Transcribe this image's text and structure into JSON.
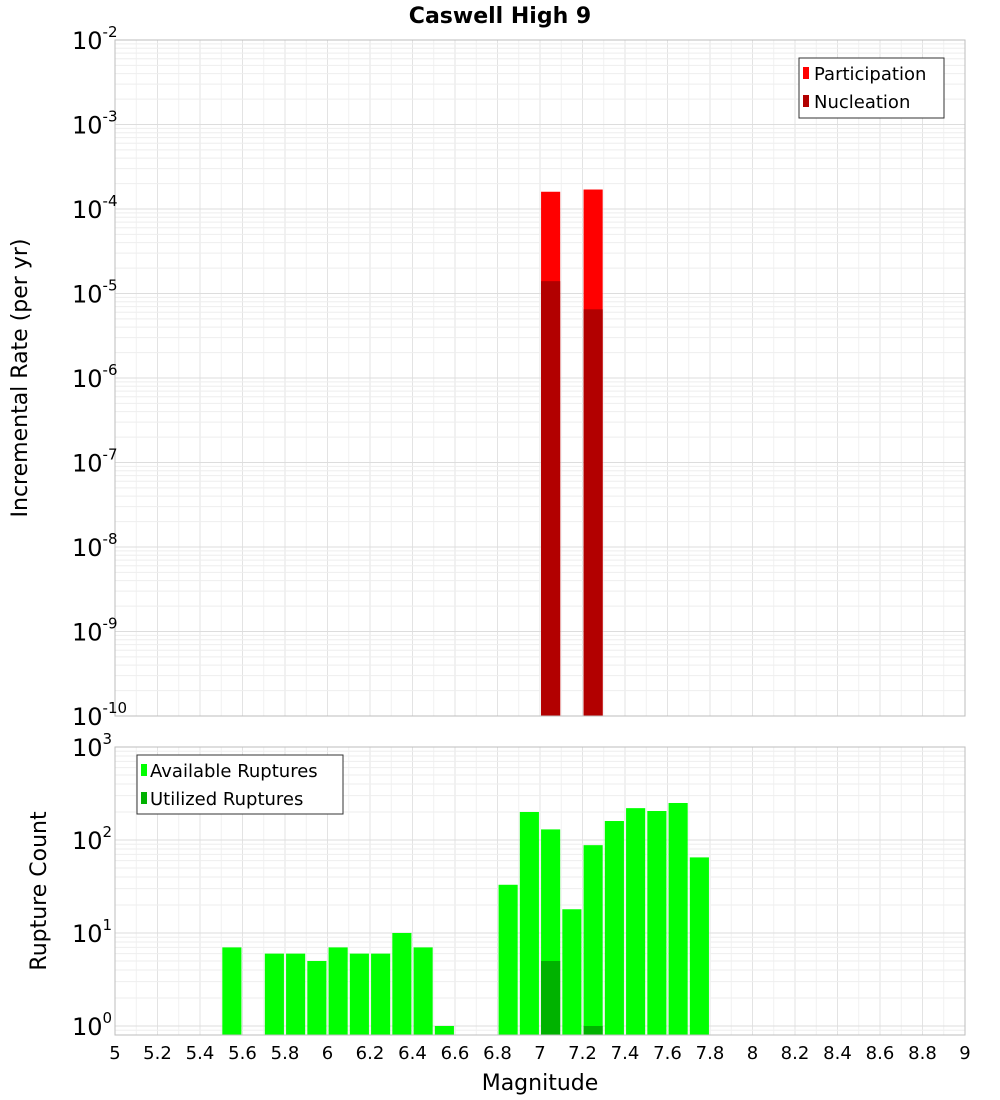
{
  "chart_data": [
    {
      "type": "bar",
      "title": "Caswell High 9",
      "xlabel": "",
      "ylabel": "Incremental Rate (per yr)",
      "yscale": "log",
      "ylim": [
        1e-10,
        0.01
      ],
      "xlim": [
        5,
        9
      ],
      "grid": true,
      "bar_width": 0.09,
      "y_ticks": [
        {
          "base": "10",
          "exp": "-10",
          "value": 1e-10
        },
        {
          "base": "10",
          "exp": "-9",
          "value": 1e-09
        },
        {
          "base": "10",
          "exp": "-8",
          "value": 1e-08
        },
        {
          "base": "10",
          "exp": "-7",
          "value": 1e-07
        },
        {
          "base": "10",
          "exp": "-6",
          "value": 1e-06
        },
        {
          "base": "10",
          "exp": "-5",
          "value": 1e-05
        },
        {
          "base": "10",
          "exp": "-4",
          "value": 0.0001
        },
        {
          "base": "10",
          "exp": "-3",
          "value": 0.001
        },
        {
          "base": "10",
          "exp": "-2",
          "value": 0.01
        }
      ],
      "legend": {
        "placement": "top-right",
        "entries": [
          {
            "label": "Participation",
            "color": "#ff0000"
          },
          {
            "label": "Nucleation",
            "color": "#b20000"
          }
        ]
      },
      "series": [
        {
          "name": "Participation",
          "color": "#ff0000",
          "x": [
            7.05,
            7.25
          ],
          "values": [
            0.00016,
            0.00017
          ]
        },
        {
          "name": "Nucleation",
          "color": "#b20000",
          "x": [
            7.05,
            7.25
          ],
          "values": [
            1.4e-05,
            6.5e-06
          ]
        }
      ]
    },
    {
      "type": "bar",
      "title": "",
      "xlabel": "Magnitude",
      "ylabel": "Rupture Count",
      "yscale": "log",
      "ylim": [
        0.8,
        1000
      ],
      "xlim": [
        5,
        9
      ],
      "grid": true,
      "bar_width": 0.09,
      "x_ticks": [
        "5",
        "5.2",
        "5.4",
        "5.6",
        "5.8",
        "6",
        "6.2",
        "6.4",
        "6.6",
        "6.8",
        "7",
        "7.2",
        "7.4",
        "7.6",
        "7.8",
        "8",
        "8.2",
        "8.4",
        "8.6",
        "8.8",
        "9"
      ],
      "y_ticks": [
        {
          "base": "10",
          "exp": "0",
          "value": 1
        },
        {
          "base": "10",
          "exp": "1",
          "value": 10
        },
        {
          "base": "10",
          "exp": "2",
          "value": 100
        },
        {
          "base": "10",
          "exp": "3",
          "value": 1000
        }
      ],
      "legend": {
        "placement": "top-left",
        "entries": [
          {
            "label": "Available Ruptures",
            "color": "#00ff00"
          },
          {
            "label": "Utilized Ruptures",
            "color": "#00b200"
          }
        ]
      },
      "series": [
        {
          "name": "Available Ruptures",
          "color": "#00ff00",
          "x": [
            5.55,
            5.75,
            5.85,
            5.95,
            6.05,
            6.15,
            6.25,
            6.35,
            6.45,
            6.55,
            6.85,
            6.95,
            7.05,
            7.15,
            7.25,
            7.35,
            7.45,
            7.55,
            7.65,
            7.75
          ],
          "values": [
            7,
            6,
            6,
            5,
            7,
            6,
            6,
            10,
            7,
            1,
            33,
            200,
            130,
            18,
            88,
            160,
            220,
            205,
            250,
            65
          ]
        },
        {
          "name": "Utilized Ruptures",
          "color": "#00b200",
          "x": [
            7.05,
            7.25
          ],
          "values": [
            5,
            1
          ]
        }
      ]
    }
  ]
}
